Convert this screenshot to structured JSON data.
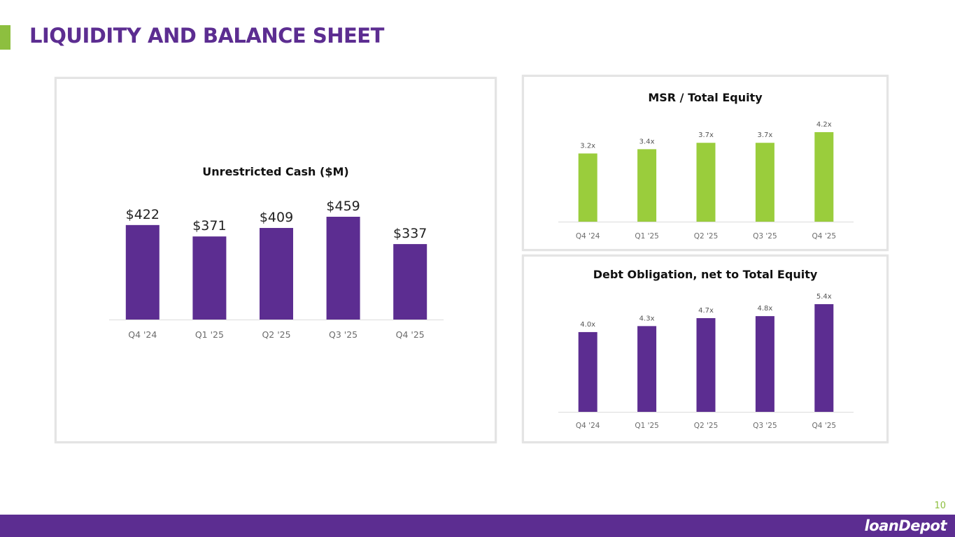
{
  "header": {
    "title": "LIQUIDITY AND BALANCE SHEET"
  },
  "footer": {
    "page_number": "10",
    "logo_text": "loanDepot"
  },
  "colors": {
    "purple": "#5C2D91",
    "green": "#9ACD3C",
    "accent_green": "#8DBF3F",
    "axis_text": "#6b6b6b",
    "baseline": "#dcdcdc"
  },
  "chart_data": [
    {
      "id": "cash",
      "type": "bar",
      "title": "Unrestricted Cash ($M)",
      "categories": [
        "Q4 '24",
        "Q1 '25",
        "Q2 '25",
        "Q3 '25",
        "Q4 '25"
      ],
      "values": [
        422,
        371,
        409,
        459,
        337
      ],
      "labels": [
        "$422",
        "$371",
        "$409",
        "$459",
        "$337"
      ],
      "ylim": [
        0,
        459
      ],
      "color": "#5C2D91",
      "xlabel": "",
      "ylabel": "",
      "grid": false,
      "legend": "none"
    },
    {
      "id": "msr",
      "type": "bar",
      "title": "MSR / Total Equity",
      "categories": [
        "Q4 '24",
        "Q1 '25",
        "Q2 '25",
        "Q3 '25",
        "Q4 '25"
      ],
      "values": [
        3.2,
        3.4,
        3.7,
        3.7,
        4.2
      ],
      "labels": [
        "3.2x",
        "3.4x",
        "3.7x",
        "3.7x",
        "4.2x"
      ],
      "ylim": [
        0,
        4.2
      ],
      "color": "#9ACD3C",
      "xlabel": "",
      "ylabel": "",
      "grid": false,
      "legend": "none"
    },
    {
      "id": "debt",
      "type": "bar",
      "title": "Debt Obligation, net to Total Equity",
      "categories": [
        "Q4 '24",
        "Q1 '25",
        "Q2 '25",
        "Q3 '25",
        "Q4 '25"
      ],
      "values": [
        4.0,
        4.3,
        4.7,
        4.8,
        5.4
      ],
      "labels": [
        "4.0x",
        "4.3x",
        "4.7x",
        "4.8x",
        "5.4x"
      ],
      "ylim": [
        0,
        5.4
      ],
      "color": "#5C2D91",
      "xlabel": "",
      "ylabel": "",
      "grid": false,
      "legend": "none"
    }
  ]
}
